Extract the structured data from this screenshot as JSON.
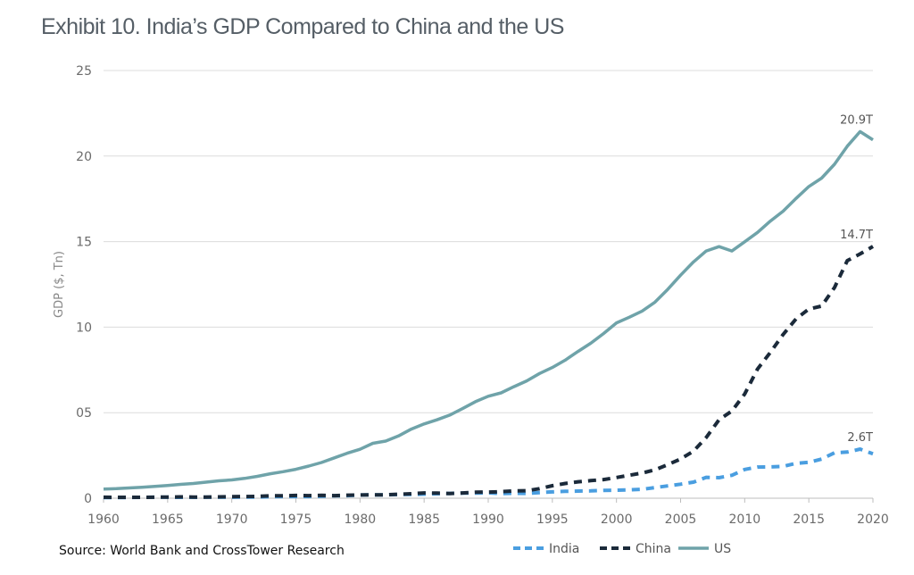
{
  "title": "Exhibit 10. India’s GDP Compared to China and the US",
  "source": "Source: World Bank and CrossTower Research",
  "chart_data": {
    "type": "line",
    "ylabel": "GDP ($, Tn)",
    "xlabel": "",
    "xlim": [
      1960,
      2020
    ],
    "ylim": [
      0,
      25
    ],
    "x_ticks": [
      "1960",
      "1965",
      "1970",
      "1975",
      "1980",
      "1985",
      "1990",
      "1995",
      "2000",
      "2005",
      "2010",
      "2015",
      "2020"
    ],
    "y_ticks": [
      "0",
      "05",
      "10",
      "15",
      "20",
      "25"
    ],
    "grid": "horizontal",
    "legend_position": "bottom-right",
    "x": [
      1960,
      1961,
      1962,
      1963,
      1964,
      1965,
      1966,
      1967,
      1968,
      1969,
      1970,
      1971,
      1972,
      1973,
      1974,
      1975,
      1976,
      1977,
      1978,
      1979,
      1980,
      1981,
      1982,
      1983,
      1984,
      1985,
      1986,
      1987,
      1988,
      1989,
      1990,
      1991,
      1992,
      1993,
      1994,
      1995,
      1996,
      1997,
      1998,
      1999,
      2000,
      2001,
      2002,
      2003,
      2004,
      2005,
      2006,
      2007,
      2008,
      2009,
      2010,
      2011,
      2012,
      2013,
      2014,
      2015,
      2016,
      2017,
      2018,
      2019,
      2020
    ],
    "series": [
      {
        "name": "India",
        "color": "#4a9ee0",
        "style": "dashed",
        "values": [
          0.04,
          0.04,
          0.04,
          0.05,
          0.06,
          0.06,
          0.05,
          0.05,
          0.06,
          0.06,
          0.06,
          0.07,
          0.07,
          0.09,
          0.1,
          0.1,
          0.1,
          0.12,
          0.14,
          0.15,
          0.19,
          0.2,
          0.2,
          0.22,
          0.22,
          0.24,
          0.26,
          0.28,
          0.3,
          0.3,
          0.32,
          0.27,
          0.29,
          0.28,
          0.33,
          0.37,
          0.4,
          0.42,
          0.43,
          0.46,
          0.47,
          0.49,
          0.52,
          0.62,
          0.72,
          0.82,
          0.94,
          1.22,
          1.2,
          1.34,
          1.68,
          1.82,
          1.83,
          1.86,
          2.04,
          2.1,
          2.29,
          2.65,
          2.7,
          2.87,
          2.6
        ]
      },
      {
        "name": "China",
        "color": "#1b2a3a",
        "style": "dashed",
        "values": [
          0.06,
          0.05,
          0.05,
          0.05,
          0.06,
          0.07,
          0.08,
          0.07,
          0.07,
          0.08,
          0.09,
          0.1,
          0.11,
          0.14,
          0.14,
          0.16,
          0.15,
          0.17,
          0.15,
          0.18,
          0.19,
          0.2,
          0.2,
          0.23,
          0.26,
          0.31,
          0.3,
          0.27,
          0.31,
          0.35,
          0.36,
          0.38,
          0.43,
          0.44,
          0.56,
          0.73,
          0.86,
          0.96,
          1.03,
          1.09,
          1.21,
          1.34,
          1.47,
          1.66,
          1.96,
          2.29,
          2.75,
          3.55,
          4.59,
          5.1,
          6.09,
          7.55,
          8.53,
          9.57,
          10.48,
          11.06,
          11.23,
          12.31,
          13.89,
          14.28,
          14.72
        ]
      },
      {
        "name": "US",
        "color": "#6fa3a9",
        "style": "solid",
        "values": [
          0.54,
          0.56,
          0.6,
          0.64,
          0.69,
          0.74,
          0.81,
          0.86,
          0.94,
          1.02,
          1.07,
          1.16,
          1.28,
          1.43,
          1.55,
          1.69,
          1.88,
          2.09,
          2.36,
          2.63,
          2.86,
          3.21,
          3.34,
          3.64,
          4.04,
          4.34,
          4.58,
          4.86,
          5.24,
          5.64,
          5.96,
          6.16,
          6.52,
          6.86,
          7.29,
          7.64,
          8.07,
          8.58,
          9.06,
          9.63,
          10.25,
          10.58,
          10.94,
          11.46,
          12.21,
          13.04,
          13.81,
          14.45,
          14.71,
          14.45,
          14.99,
          15.54,
          16.2,
          16.78,
          17.52,
          18.22,
          18.71,
          19.52,
          20.58,
          21.43,
          20.95
        ]
      }
    ],
    "annotations": [
      {
        "series": "US",
        "text": "20.9T"
      },
      {
        "series": "China",
        "text": "14.7T"
      },
      {
        "series": "India",
        "text": "2.6T"
      }
    ]
  }
}
